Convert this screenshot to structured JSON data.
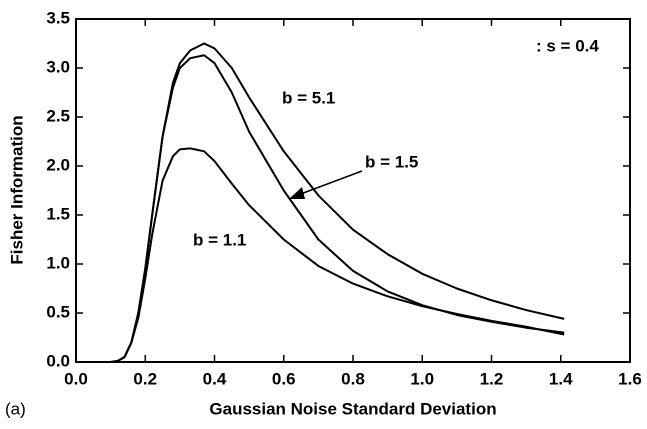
{
  "chart_data": {
    "type": "line",
    "x_label": "Gaussian Noise Standard Deviation",
    "y_label": "Fisher Information",
    "panel_label": "(a)",
    "annotation": ": s = 0.4",
    "xlim": [
      0,
      1.6
    ],
    "ylim": [
      0,
      3.5
    ],
    "xticks": [
      {
        "value": 0,
        "label": "0.0"
      },
      0.2,
      0.4,
      0.6,
      0.8,
      {
        "value": 1,
        "label": "1.0"
      },
      1.2,
      1.4,
      1.6
    ],
    "yticks": [
      {
        "value": 0,
        "label": "0.0"
      },
      0.5,
      {
        "value": 1,
        "label": "1.0"
      },
      1.5,
      {
        "value": 2,
        "label": "2.0"
      },
      2.5,
      {
        "value": 3,
        "label": "3.0"
      },
      3.5
    ],
    "x": [
      0.1,
      0.12,
      0.14,
      0.16,
      0.18,
      0.2,
      0.22,
      0.25,
      0.28,
      0.3,
      0.33,
      0.37,
      0.4,
      0.45,
      0.5,
      0.6,
      0.7,
      0.8,
      0.9,
      1.0,
      1.1,
      1.2,
      1.3,
      1.41
    ],
    "series": [
      {
        "name": "b = 5.1",
        "color": "#000000",
        "values": [
          0,
          0.01,
          0.05,
          0.2,
          0.5,
          0.95,
          1.5,
          2.3,
          2.85,
          3.05,
          3.18,
          3.25,
          3.2,
          3.0,
          2.7,
          2.15,
          1.7,
          1.35,
          1.1,
          0.9,
          0.75,
          0.63,
          0.53,
          0.44
        ]
      },
      {
        "name": "b = 1.5",
        "color": "#000000",
        "values": [
          0,
          0.01,
          0.05,
          0.2,
          0.5,
          0.95,
          1.5,
          2.3,
          2.8,
          3.0,
          3.1,
          3.13,
          3.05,
          2.75,
          2.35,
          1.75,
          1.25,
          0.93,
          0.72,
          0.58,
          0.48,
          0.41,
          0.35,
          0.3
        ]
      },
      {
        "name": "b = 1.1",
        "color": "#000000",
        "values": [
          0,
          0.01,
          0.05,
          0.2,
          0.45,
          0.85,
          1.3,
          1.85,
          2.1,
          2.17,
          2.18,
          2.15,
          2.05,
          1.82,
          1.6,
          1.25,
          0.98,
          0.8,
          0.67,
          0.57,
          0.49,
          0.42,
          0.36,
          0.28
        ]
      }
    ]
  }
}
